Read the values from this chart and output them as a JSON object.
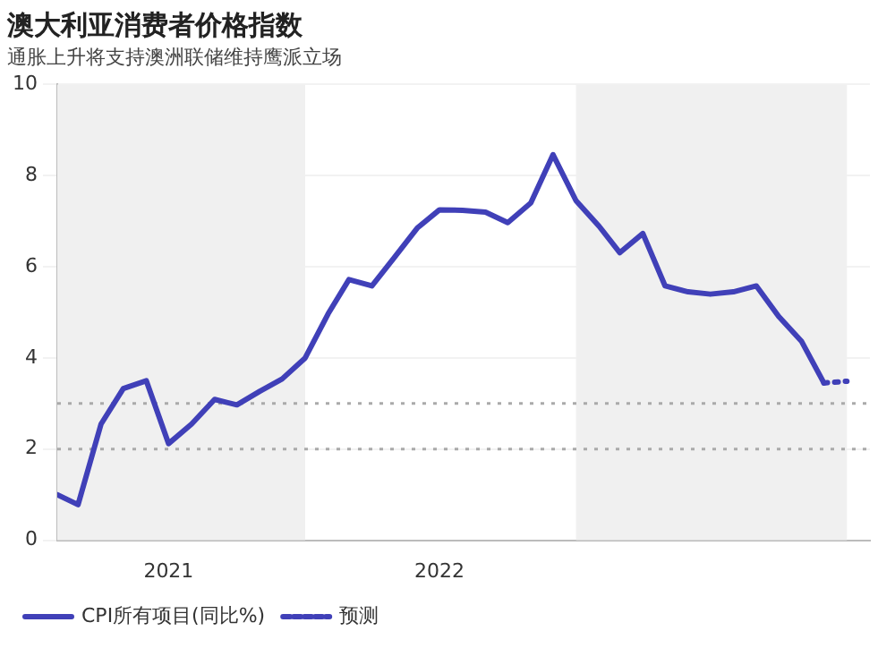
{
  "chart_data": {
    "type": "line",
    "title": "澳大利亚消费者价格指数",
    "subtitle": "通胀上升将支持澳洲联储维持鹰派立场",
    "xlim": [
      "2021-02",
      "2024-02"
    ],
    "xticks": [
      {
        "value": "2021-07",
        "label": "2021"
      },
      {
        "value": "2022-07",
        "label": "2022"
      }
    ],
    "ylim": [
      0,
      10
    ],
    "yticks": [
      0,
      2,
      4,
      6,
      8,
      10
    ],
    "grid": "y",
    "legend": "bottom left",
    "marker": "none",
    "series": [
      {
        "name": "CPI所有项目(同比%)",
        "color": "#4040b8",
        "line_style": "solid",
        "x": [
          "2021-02",
          "2021-03",
          "2021-04",
          "2021-05",
          "2021-06",
          "2021-07",
          "2021-08",
          "2021-09",
          "2021-10",
          "2021-11",
          "2021-12",
          "2022-01",
          "2022-02",
          "2022-03",
          "2022-04",
          "2022-05",
          "2022-06",
          "2022-07",
          "2022-08",
          "2022-09",
          "2022-10",
          "2022-11",
          "2022-12",
          "2023-01",
          "2023-02",
          "2023-03",
          "2023-04",
          "2023-05",
          "2023-06",
          "2023-07",
          "2023-08",
          "2023-09",
          "2023-10",
          "2023-11",
          "2023-12"
        ],
        "values": [
          1.0,
          0.78,
          2.55,
          3.33,
          3.5,
          2.12,
          2.55,
          3.09,
          2.97,
          3.27,
          3.54,
          4.0,
          4.97,
          5.72,
          5.58,
          6.2,
          6.85,
          7.25,
          7.24,
          7.2,
          6.97,
          7.4,
          8.46,
          7.45,
          6.89,
          6.31,
          6.73,
          5.58,
          5.45,
          5.4,
          5.45,
          5.58,
          4.91,
          4.36,
          3.45
        ]
      },
      {
        "name": "预测",
        "color": "#4040b8",
        "line_style": "dotted",
        "x": [
          "2023-12",
          "2024-01"
        ],
        "values": [
          3.45,
          3.49
        ]
      }
    ],
    "bands": [
      {
        "axis": "x",
        "from": "2021-02",
        "to": "2022-01",
        "color": "#f0f0f0"
      },
      {
        "axis": "x",
        "from": "2023-01",
        "to": "2024-01",
        "color": "#f0f0f0"
      }
    ],
    "ref_lines": [
      {
        "axis": "y",
        "value": 2,
        "color": "#aaaaaa",
        "line_style": "dotted"
      },
      {
        "axis": "y",
        "value": 3,
        "color": "#aaaaaa",
        "line_style": "dotted"
      }
    ]
  }
}
